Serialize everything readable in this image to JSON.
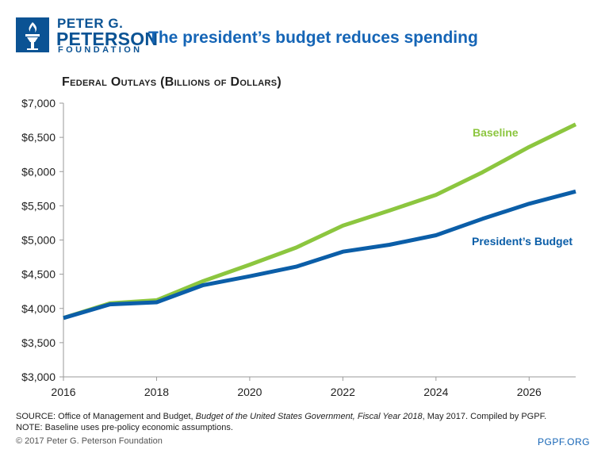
{
  "header": {
    "org_line1": "PETER G.",
    "org_line2": "PETERSON",
    "org_line3": "FOUNDATION",
    "headline": "The president’s budget reduces spending",
    "logo_icon": "torch-icon"
  },
  "chart_data": {
    "type": "line",
    "title": "Federal Outlays (Billions of Dollars)",
    "xlabel": "",
    "ylabel": "",
    "x": [
      2016,
      2017,
      2018,
      2019,
      2020,
      2021,
      2022,
      2023,
      2024,
      2025,
      2026,
      2027
    ],
    "xticks": [
      2016,
      2018,
      2020,
      2022,
      2024,
      2026
    ],
    "xtick_labels": [
      "2016",
      "2018",
      "2020",
      "2022",
      "2024",
      "2026"
    ],
    "xlim": [
      2016,
      2027
    ],
    "ylim": [
      3000,
      7000
    ],
    "yticks": [
      3000,
      3500,
      4000,
      4500,
      5000,
      5500,
      6000,
      6500,
      7000
    ],
    "ytick_labels": [
      "$3,000",
      "$3,500",
      "$4,000",
      "$4,500",
      "$5,000",
      "$5,500",
      "$6,000",
      "$6,500",
      "$7,000"
    ],
    "grid": false,
    "series": [
      {
        "name": "Baseline",
        "color": "#8cc63f",
        "values": [
          3860,
          4075,
          4120,
          4400,
          4640,
          4890,
          5210,
          5430,
          5660,
          5990,
          6360,
          6690
        ]
      },
      {
        "name": "President's Budget",
        "color": "#0b5ea8",
        "values": [
          3860,
          4060,
          4090,
          4340,
          4470,
          4610,
          4830,
          4930,
          5070,
          5310,
          5530,
          5710
        ]
      }
    ],
    "labels": {
      "baseline": "Baseline",
      "presidents_budget": "President’s Budget"
    }
  },
  "source": {
    "prefix": "SOURCE: Office of Management and Budget, ",
    "title": "Budget of the United States Government, Fiscal Year 2018",
    "suffix": ", May 2017. Compiled by PGPF.",
    "note": "NOTE: Baseline uses pre-policy economic assumptions."
  },
  "footer": {
    "copyright": "© 2017 Peter G. Peterson Foundation",
    "url": "PGPF.ORG"
  }
}
